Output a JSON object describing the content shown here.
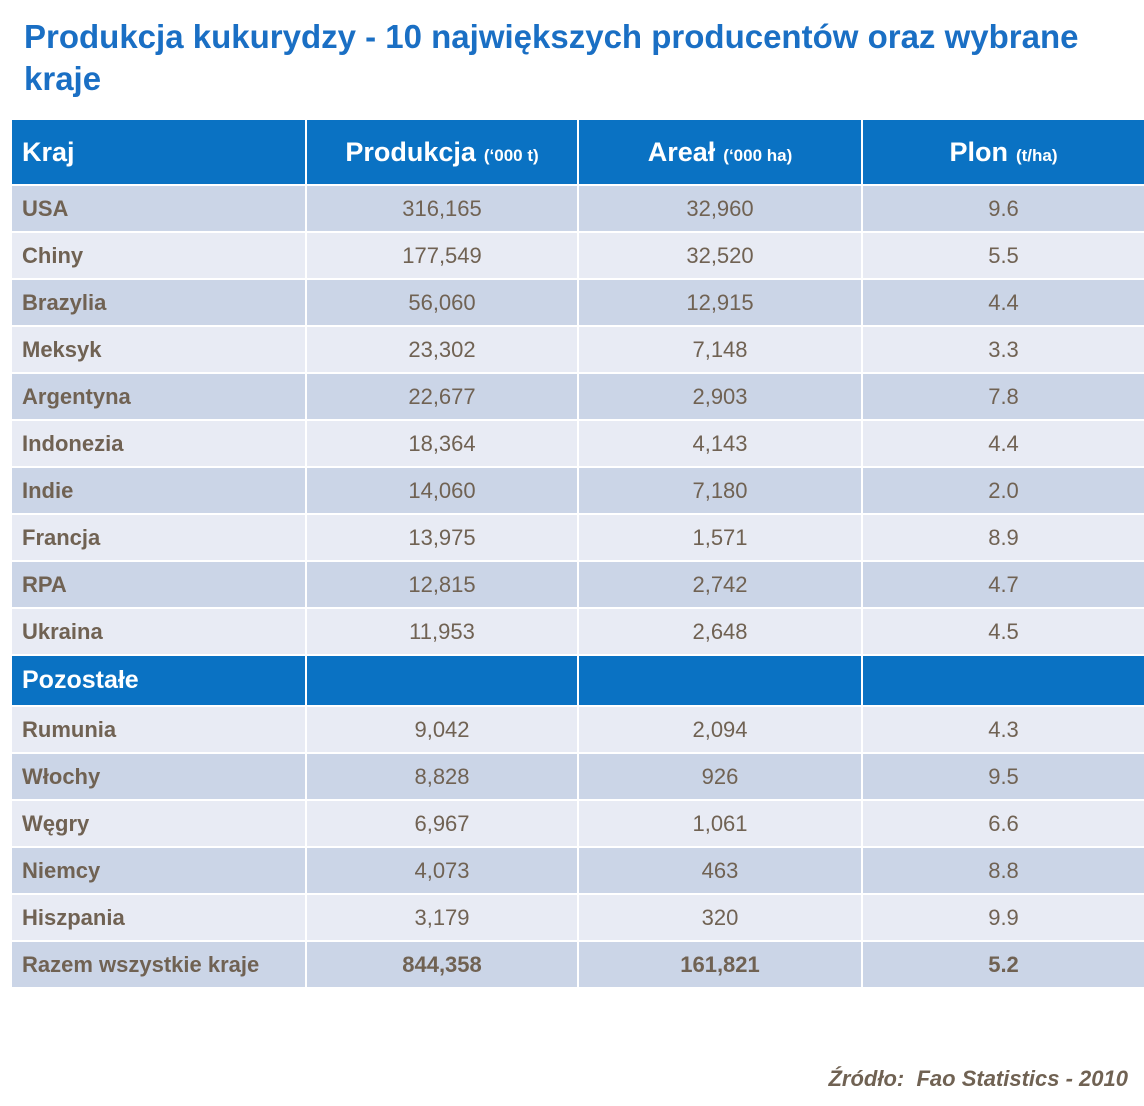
{
  "title": "Produkcja kukurydzy - 10 największych producentów oraz wybrane kraje",
  "header": {
    "col1": "Kraj",
    "col2": "Produkcja",
    "col2_unit": "(‘000 t)",
    "col3": "Areał",
    "col3_unit": "(‘000 ha)",
    "col4": "Plon",
    "col4_unit": "(t/ha)"
  },
  "top10": [
    {
      "country": "USA",
      "production": "316,165",
      "area": "32,960",
      "yield": "9.6"
    },
    {
      "country": "Chiny",
      "production": "177,549",
      "area": "32,520",
      "yield": "5.5"
    },
    {
      "country": "Brazylia",
      "production": "56,060",
      "area": "12,915",
      "yield": "4.4"
    },
    {
      "country": "Meksyk",
      "production": "23,302",
      "area": "7,148",
      "yield": "3.3"
    },
    {
      "country": "Argentyna",
      "production": "22,677",
      "area": "2,903",
      "yield": "7.8"
    },
    {
      "country": "Indonezia",
      "production": "18,364",
      "area": "4,143",
      "yield": "4.4"
    },
    {
      "country": "Indie",
      "production": "14,060",
      "area": "7,180",
      "yield": "2.0"
    },
    {
      "country": "Francja",
      "production": "13,975",
      "area": "1,571",
      "yield": "8.9"
    },
    {
      "country": "RPA",
      "production": "12,815",
      "area": "2,742",
      "yield": "4.7"
    },
    {
      "country": "Ukraina",
      "production": "11,953",
      "area": "2,648",
      "yield": "4.5"
    }
  ],
  "others_label": "Pozostałe",
  "others": [
    {
      "country": "Rumunia",
      "production": "9,042",
      "area": "2,094",
      "yield": "4.3"
    },
    {
      "country": "Włochy",
      "production": "8,828",
      "area": "926",
      "yield": "9.5"
    },
    {
      "country": "Węgry",
      "production": "6,967",
      "area": "1,061",
      "yield": "6.6"
    },
    {
      "country": "Niemcy",
      "production": "4,073",
      "area": "463",
      "yield": "8.8"
    },
    {
      "country": "Hiszpania",
      "production": "3,179",
      "area": "320",
      "yield": "9.9"
    }
  ],
  "total": {
    "country": "Razem wszystkie kraje",
    "production": "844,358",
    "area": "161,821",
    "yield": "5.2"
  },
  "source": "Źródło:  Fao Statistics - 2010",
  "colors": {
    "title": "#1a6fc4",
    "header_bg": "#0a72c3",
    "row_dark": "#cbd5e7",
    "row_light": "#e8ebf4",
    "body_text": "#706253"
  }
}
